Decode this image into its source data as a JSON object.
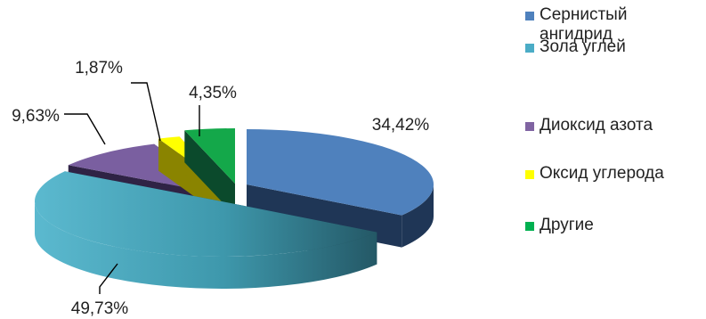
{
  "chart_data": {
    "type": "pie",
    "style": "3d-exploded",
    "title": "",
    "legend_position": "right",
    "slices": [
      {
        "name": "Сернистый ангидрид",
        "value": 34.42,
        "label": "34,42%",
        "color": "#4F81BD"
      },
      {
        "name": "Зола углей",
        "value": 49.73,
        "label": "49,73%",
        "color": "#4BACC6"
      },
      {
        "name": "Диоксид азота",
        "value": 9.63,
        "label": "9,63%",
        "color": "#8064A2"
      },
      {
        "name": "Оксид углерода",
        "value": 1.87,
        "label": "1,87%",
        "color": "#FFFF00"
      },
      {
        "name": "Другие",
        "value": 4.35,
        "label": "4,35%",
        "color": "#00B050"
      }
    ]
  }
}
